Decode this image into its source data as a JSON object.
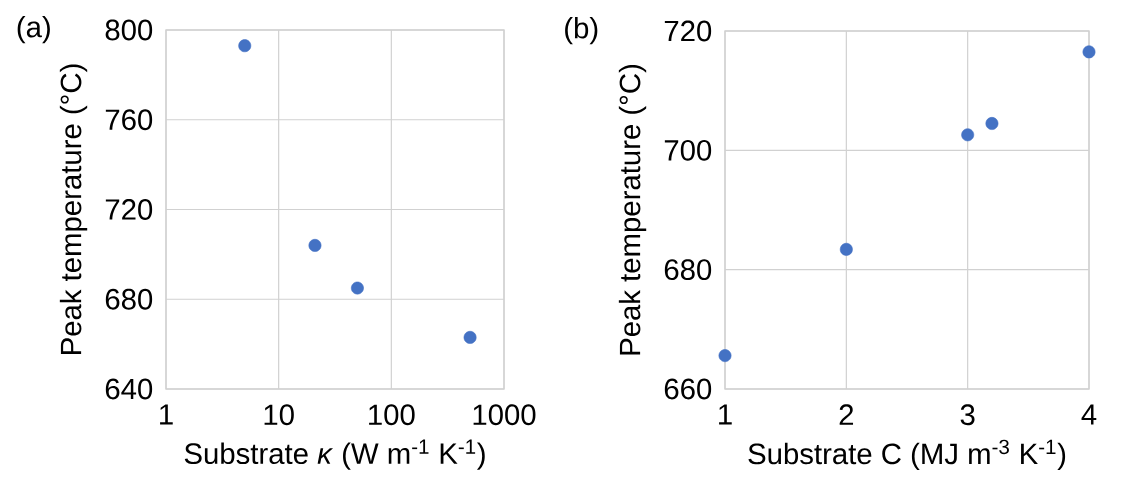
{
  "chart_data": [
    {
      "type": "scatter",
      "xlabel": "Substrate *κ* (W m$^{-1}$ K$^{-1}$)",
      "ylabel": "Peak temperature (°C)",
      "annotations": [
        "(a)"
      ],
      "log": "x",
      "x": [
        5,
        21,
        50,
        500
      ],
      "series": [
        {
          "color": "#4472c4",
          "values": [
            793,
            704,
            685,
            663
          ]
        }
      ],
      "xlim": [
        1,
        1000
      ],
      "xticks": [
        1,
        10,
        100,
        1000
      ],
      "ylim": [
        640,
        800
      ],
      "yticks": [
        640,
        680,
        720,
        760,
        800
      ],
      "grid": true,
      "marker": "circle"
    },
    {
      "type": "scatter",
      "xlabel": "Substrate C (MJ m$^{-3}$ K$^{-1}$)",
      "ylabel": "Peak temperature (°C)",
      "annotations": [
        "(b)"
      ],
      "x": [
        1,
        2,
        3,
        3.2,
        4
      ],
      "series": [
        {
          "color": "#4472c4",
          "values": [
            665.6,
            683.4,
            702.6,
            704.5,
            716.5
          ]
        }
      ],
      "xlim": [
        1,
        4
      ],
      "xticks": [
        1,
        2,
        3,
        4
      ],
      "ylim": [
        660,
        720
      ],
      "yticks": [
        660,
        680,
        700,
        720
      ],
      "grid": true,
      "marker": "circle"
    }
  ]
}
